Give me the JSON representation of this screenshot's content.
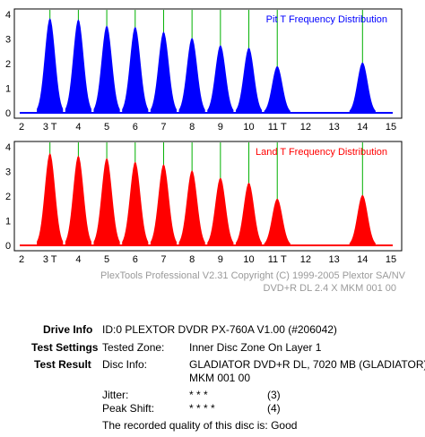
{
  "chart_data": [
    {
      "type": "area",
      "title": "Pit T Frequency Distribution",
      "xlim": [
        2,
        15
      ],
      "ylim": [
        0,
        4
      ],
      "x_ticks": [
        "2",
        "3 T",
        "4",
        "5",
        "6",
        "7",
        "8",
        "9",
        "10",
        "11 T",
        "12",
        "13",
        "14",
        "15"
      ],
      "y_ticks": [
        "0",
        "1",
        "2",
        "3",
        "4"
      ],
      "grid": false,
      "series": [
        {
          "color": "#0000ff",
          "peaks": [
            {
              "t": 3,
              "height": 3.85
            },
            {
              "t": 4,
              "height": 3.8
            },
            {
              "t": 5,
              "height": 3.55
            },
            {
              "t": 6,
              "height": 3.5
            },
            {
              "t": 7,
              "height": 3.3
            },
            {
              "t": 8,
              "height": 3.05
            },
            {
              "t": 9,
              "height": 2.75
            },
            {
              "t": 10,
              "height": 2.65
            },
            {
              "t": 11,
              "height": 1.9
            },
            {
              "t": 14,
              "height": 2.05
            }
          ]
        }
      ],
      "marker_lines_at": [
        3,
        4,
        5,
        6,
        7,
        8,
        9,
        10,
        11,
        14
      ],
      "marker_color": "#00b000"
    },
    {
      "type": "area",
      "title": "Land T Frequency Distribution",
      "xlim": [
        2,
        15
      ],
      "ylim": [
        0,
        4
      ],
      "x_ticks": [
        "2",
        "3 T",
        "4",
        "5",
        "6",
        "7",
        "8",
        "9",
        "10",
        "11 T",
        "12",
        "13",
        "14",
        "15"
      ],
      "y_ticks": [
        "0",
        "1",
        "2",
        "3",
        "4"
      ],
      "grid": false,
      "series": [
        {
          "color": "#ff0000",
          "peaks": [
            {
              "t": 3,
              "height": 3.75
            },
            {
              "t": 4,
              "height": 3.65
            },
            {
              "t": 5,
              "height": 3.55
            },
            {
              "t": 6,
              "height": 3.4
            },
            {
              "t": 7,
              "height": 3.3
            },
            {
              "t": 8,
              "height": 3.05
            },
            {
              "t": 9,
              "height": 2.75
            },
            {
              "t": 10,
              "height": 2.55
            },
            {
              "t": 11,
              "height": 1.9
            },
            {
              "t": 14,
              "height": 2.05
            }
          ]
        }
      ],
      "marker_lines_at": [
        3,
        4,
        5,
        6,
        7,
        8,
        9,
        10,
        11,
        14
      ],
      "marker_color": "#00b000"
    }
  ],
  "footer": {
    "copyright": "PlexTools Professional V2.31 Copyright (C) 1999-2005 Plextor SA/NV",
    "media": "DVD+R DL   2.4 X    MKM 001 00"
  },
  "info": {
    "drive_label": "Drive Info",
    "drive_value": "ID:0 PLEXTOR DVDR PX-760A V1.00 (#206042)",
    "settings_label": "Test Settings",
    "zone_label": "Tested Zone:",
    "zone_value": "Inner Disc Zone On Layer 1",
    "result_label": "Test Result",
    "disc_label": "Disc Info:",
    "disc_value_1": "GLADIATOR DVD+R DL, 7020 MB (GLADIATOR)",
    "disc_value_2": "MKM 001 00",
    "jitter_label": "Jitter:",
    "jitter_stars": "* * *",
    "jitter_score": "(3)",
    "peak_label": "Peak Shift:",
    "peak_stars": "* * * *",
    "peak_score": "(4)",
    "quality_text": "The recorded quality of this disc is: Good"
  }
}
